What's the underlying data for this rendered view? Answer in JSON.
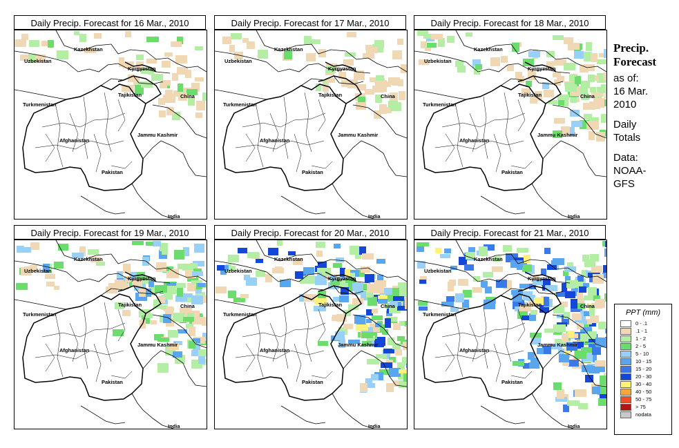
{
  "panels": [
    {
      "title": "Daily Precip. Forecast for  16 Mar., 2010",
      "level": 0
    },
    {
      "title": "Daily Precip. Forecast for  17 Mar., 2010",
      "level": 0
    },
    {
      "title": "Daily Precip. Forecast for  18 Mar., 2010",
      "level": 1
    },
    {
      "title": "Daily Precip. Forecast for  19 Mar., 2010",
      "level": 2
    },
    {
      "title": "Daily Precip. Forecast for  20 Mar., 2010",
      "level": 3
    },
    {
      "title": "Daily Precip. Forecast for  21 Mar., 2010",
      "level": 4
    }
  ],
  "map_labels": {
    "kazakhstan": "Kazekhstan",
    "uzbekistan": "Uzbekistan",
    "kyrgyzstan": "Kyrgyzstan",
    "tajikistan": "Tajikistan",
    "turkmenistan": "Turkmenistan",
    "china": "China",
    "afghanistan": "Afghanistan",
    "jammu_kashmir": "Jammu Kashmir",
    "pakistan": "Pakistan",
    "india": "India"
  },
  "side": {
    "title_line1": "Precip.",
    "title_line2": "Forecast",
    "as_of": "as of:",
    "date_line1": "16 Mar.",
    "date_line2": "2010",
    "totals_line1": "Daily",
    "totals_line2": "Totals",
    "data_line1": "Data:",
    "data_line2": "NOAA-",
    "data_line3": "GFS"
  },
  "legend": {
    "title": "PPT (mm)",
    "items": [
      {
        "label": "0 - .1",
        "color": "#ffffff"
      },
      {
        "label": ".1 - 1",
        "color": "#f0d8b4"
      },
      {
        "label": "1 - 2",
        "color": "#b4eea4"
      },
      {
        "label": "2 - 5",
        "color": "#6cdc6c"
      },
      {
        "label": "5 - 10",
        "color": "#98d0f8"
      },
      {
        "label": "10 - 15",
        "color": "#5aa6ee"
      },
      {
        "label": "15 - 20",
        "color": "#3a7ae8"
      },
      {
        "label": "20 - 30",
        "color": "#1446d8"
      },
      {
        "label": "30 - 40",
        "color": "#fff27a"
      },
      {
        "label": "40 - 50",
        "color": "#f8a838"
      },
      {
        "label": "50 - 75",
        "color": "#ee4e20"
      },
      {
        "label": "> 75",
        "color": "#b41414"
      },
      {
        "label": "nodata",
        "color": "#c8c8c8"
      }
    ]
  }
}
